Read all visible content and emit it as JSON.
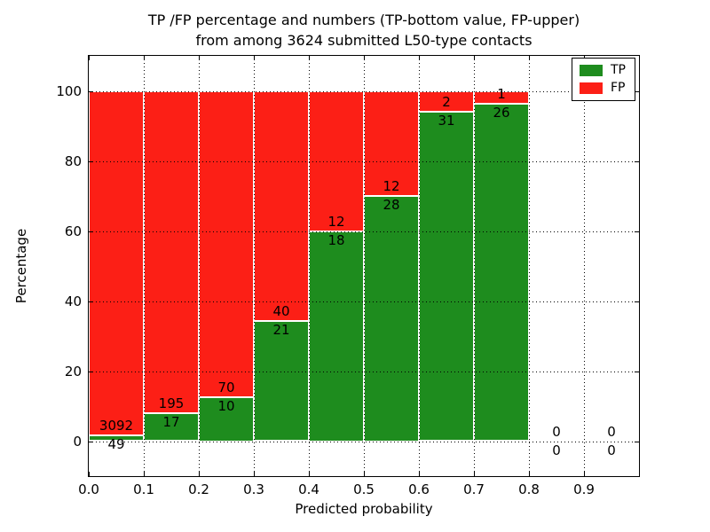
{
  "chart_data": {
    "type": "bar",
    "stacked": true,
    "units": "percent",
    "title_lines": [
      "TP /FP percentage and numbers (TP-bottom value, FP-upper)",
      "from among 3624 submitted L50-type contacts"
    ],
    "total_submitted_contacts_shown_in_title": 3624,
    "xlabel": "Predicted probability",
    "ylabel": "Percentage",
    "xlim": [
      0.0,
      1.0
    ],
    "ylim": [
      -10,
      110
    ],
    "x_tick_values": [
      0.0,
      0.1,
      0.2,
      0.3,
      0.4,
      0.5,
      0.6,
      0.7,
      0.8,
      0.9
    ],
    "x_tick_labels": [
      "0.0",
      "0.1",
      "0.2",
      "0.3",
      "0.4",
      "0.5",
      "0.6",
      "0.7",
      "0.8",
      "0.9"
    ],
    "y_tick_values": [
      0,
      20,
      40,
      60,
      80,
      100
    ],
    "y_tick_labels": [
      "0",
      "20",
      "40",
      "60",
      "80",
      "100"
    ],
    "grid": "dotted",
    "legend_position": "upper right",
    "colors": {
      "tp": "#1e8c1e",
      "fp": "#fc1f16",
      "bar_edge": "#ffffff",
      "axes": "#000000"
    },
    "legend": [
      {
        "label": "TP",
        "color_key": "tp"
      },
      {
        "label": "FP",
        "color_key": "fp"
      }
    ],
    "bins": [
      {
        "x_start": 0.0,
        "x_end": 0.1,
        "tp_count": 49,
        "fp_count": 3092,
        "tp_percent": 1.56
      },
      {
        "x_start": 0.1,
        "x_end": 0.2,
        "tp_count": 17,
        "fp_count": 195,
        "tp_percent": 8.02
      },
      {
        "x_start": 0.2,
        "x_end": 0.3,
        "tp_count": 10,
        "fp_count": 70,
        "tp_percent": 12.5
      },
      {
        "x_start": 0.3,
        "x_end": 0.4,
        "tp_count": 21,
        "fp_count": 40,
        "tp_percent": 34.43
      },
      {
        "x_start": 0.4,
        "x_end": 0.5,
        "tp_count": 18,
        "fp_count": 12,
        "tp_percent": 60.0
      },
      {
        "x_start": 0.5,
        "x_end": 0.6,
        "tp_count": 28,
        "fp_count": 12,
        "tp_percent": 70.0
      },
      {
        "x_start": 0.6,
        "x_end": 0.7,
        "tp_count": 31,
        "fp_count": 2,
        "tp_percent": 93.94
      },
      {
        "x_start": 0.7,
        "x_end": 0.8,
        "tp_count": 26,
        "fp_count": 1,
        "tp_percent": 96.3
      },
      {
        "x_start": 0.8,
        "x_end": 0.9,
        "tp_count": 0,
        "fp_count": 0,
        "tp_percent": null
      },
      {
        "x_start": 0.9,
        "x_end": 1.0,
        "tp_count": 0,
        "fp_count": 0,
        "tp_percent": null
      }
    ]
  }
}
